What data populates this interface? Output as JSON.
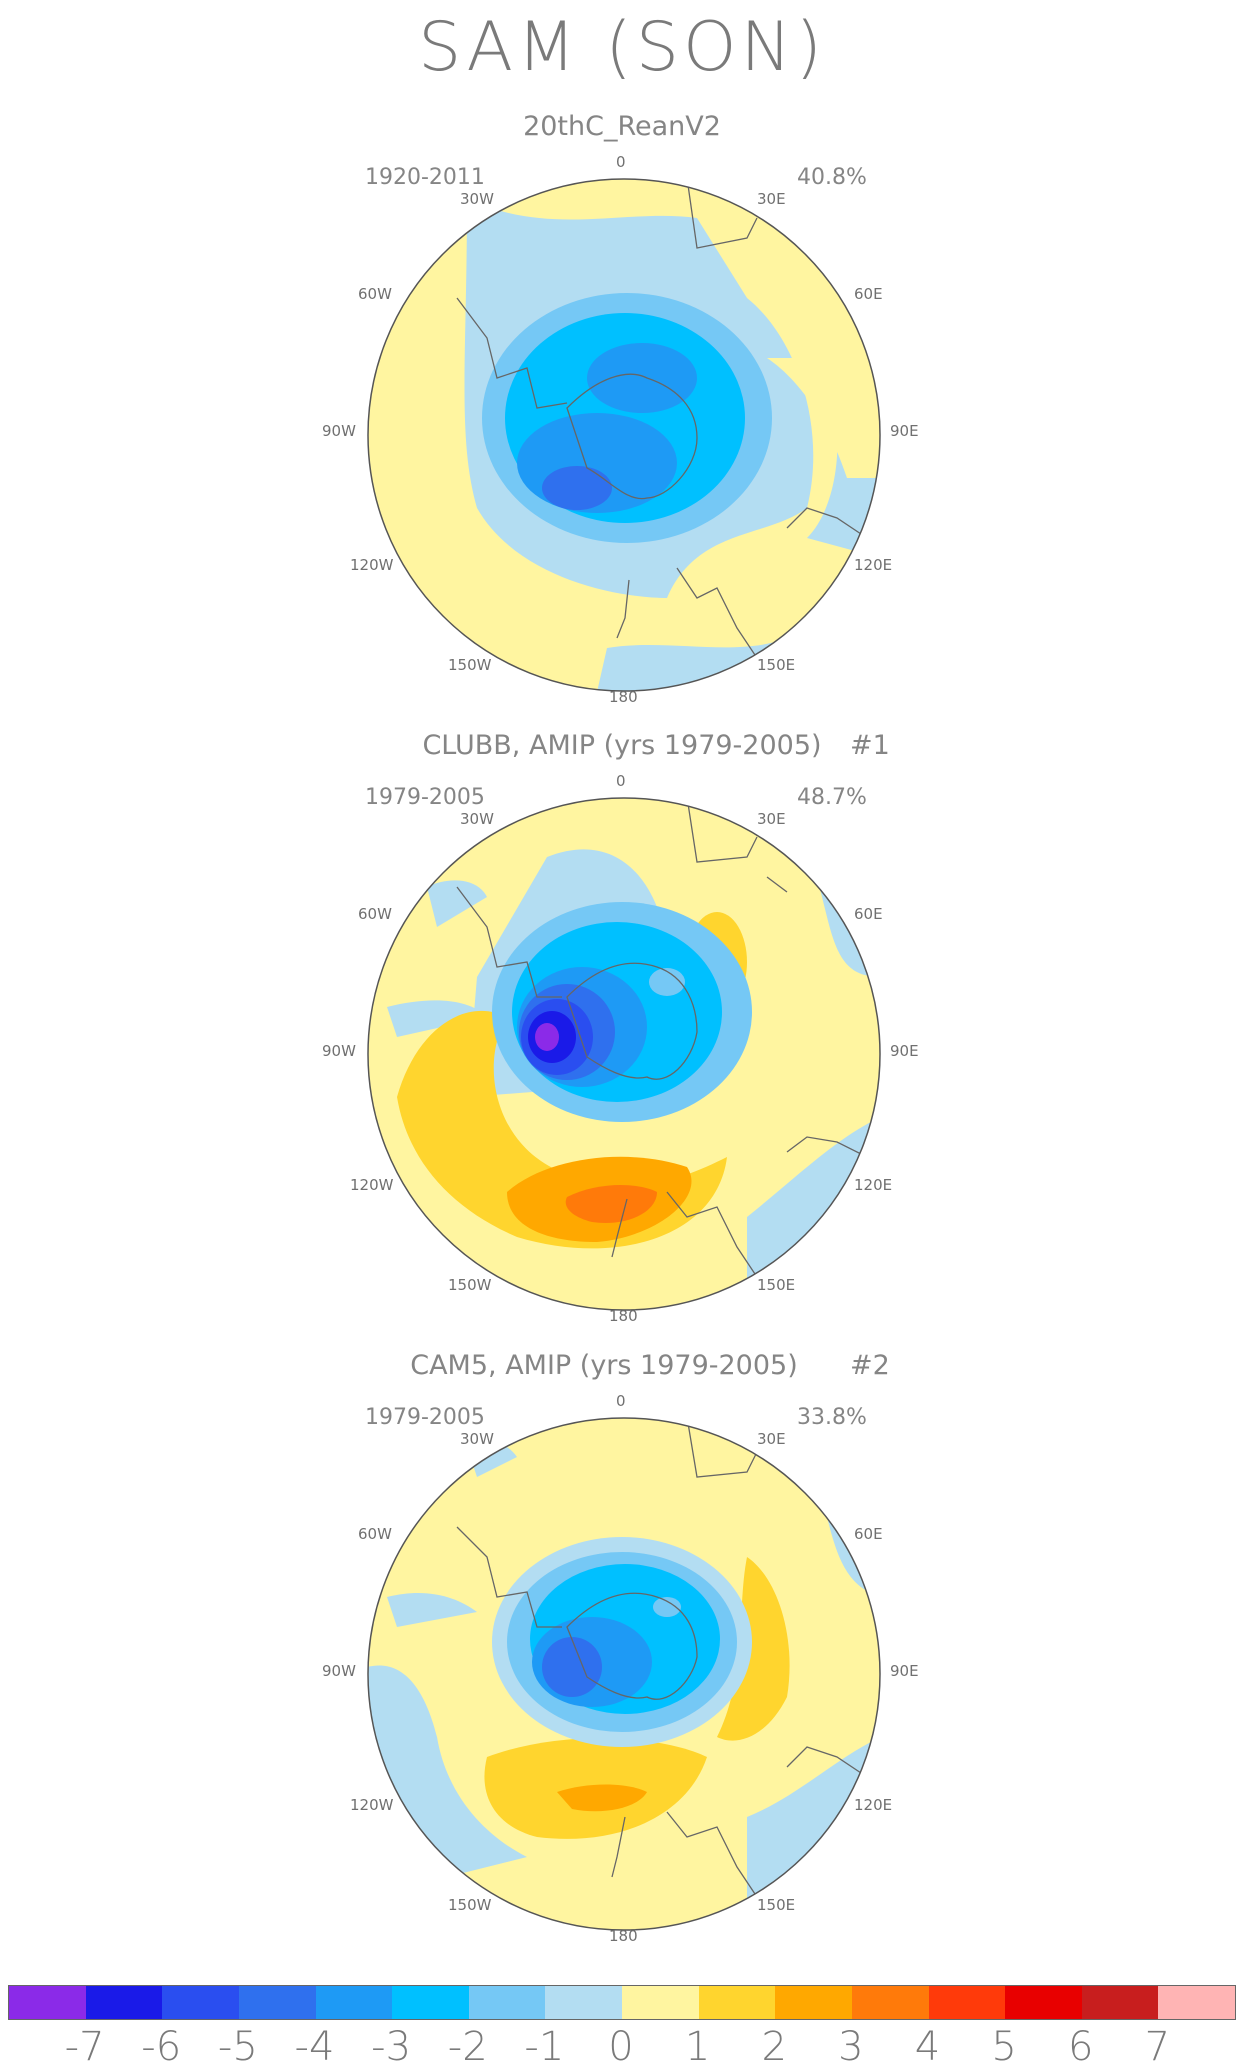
{
  "title": "SAM (SON)",
  "panels": [
    {
      "title": "20thC_ReanV2",
      "tag": "",
      "years": "1920-2011",
      "variance": "40.8%"
    },
    {
      "title": "CLUBB, AMIP (yrs 1979-2005)",
      "tag": "#1",
      "years": "1979-2005",
      "variance": "48.7%"
    },
    {
      "title": "CAM5, AMIP (yrs 1979-2005)",
      "tag": "#2",
      "years": "1979-2005",
      "variance": "33.8%"
    }
  ],
  "map_labels": {
    "top": "0",
    "bottom": "180",
    "w30": "30W",
    "w60": "60W",
    "w90": "90W",
    "w120": "120W",
    "w150": "150W",
    "e30": "30E",
    "e60": "60E",
    "e90": "90E",
    "e120": "120E",
    "e150": "150E"
  },
  "colorbar": {
    "colors": [
      "#8b2ae8",
      "#1a1ae8",
      "#2a4ef0",
      "#2f70ee",
      "#1e9af5",
      "#00c0ff",
      "#75c8f5",
      "#b3ddf2",
      "#fff5a0",
      "#ffd52e",
      "#ffa800",
      "#ff7a0a",
      "#ff3a0a",
      "#e80000",
      "#c81e1e",
      "#ffb4b4"
    ],
    "labels": [
      "-7",
      "-6",
      "-5",
      "-4",
      "-3",
      "-2",
      "-1",
      "0",
      "1",
      "2",
      "3",
      "4",
      "5",
      "6",
      "7"
    ]
  }
}
